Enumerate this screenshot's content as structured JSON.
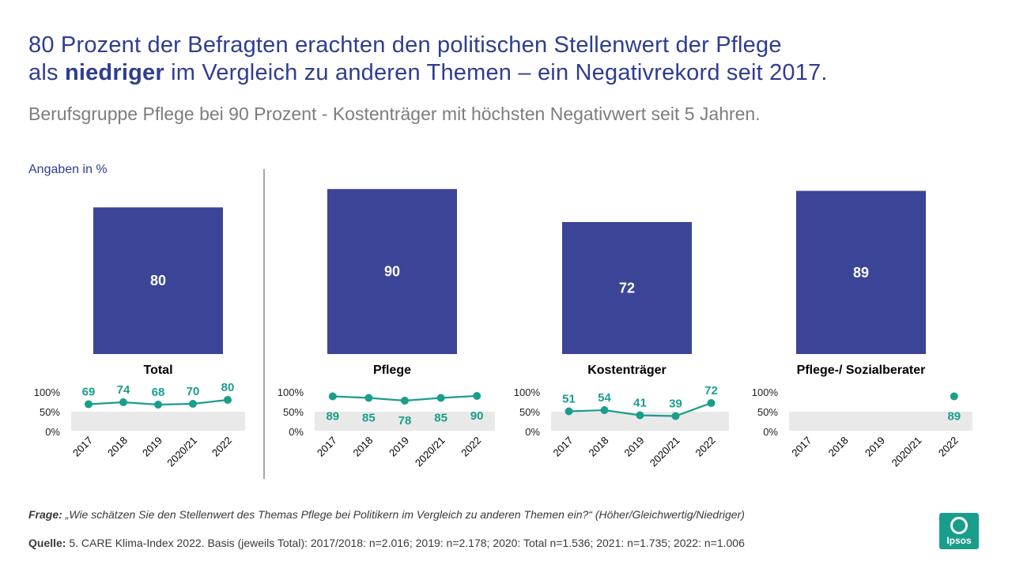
{
  "title": {
    "line1": "80 Prozent der Befragten erachten den politischen Stellenwert der Pflege",
    "line2_pre": "als ",
    "line2_bold": "niedriger",
    "line2_post": " im Vergleich zu anderen Themen – ein Negativrekord seit 2017."
  },
  "subtitle": "Berufsgruppe Pflege bei 90 Prozent - Kostenträger mit höchsten Negativwert seit 5 Jahren.",
  "unit_label": "Angaben in %",
  "chart_data": [
    {
      "type": "bar",
      "title": "Total",
      "value": 80,
      "trend": {
        "type": "line",
        "x": [
          "2017",
          "2018",
          "2019",
          "2020/21",
          "2022"
        ],
        "values": [
          69,
          74,
          68,
          70,
          80
        ],
        "labels_position": "above",
        "y_ticks": [
          "100%",
          "50%",
          "0%"
        ],
        "ylim": [
          0,
          100
        ]
      }
    },
    {
      "type": "bar",
      "title": "Pflege",
      "value": 90,
      "trend": {
        "type": "line",
        "x": [
          "2017",
          "2018",
          "2019",
          "2020/21",
          "2022"
        ],
        "values": [
          89,
          85,
          78,
          85,
          90
        ],
        "labels_position": "below",
        "y_ticks": [
          "100%",
          "50%",
          "0%"
        ],
        "ylim": [
          0,
          100
        ]
      }
    },
    {
      "type": "bar",
      "title": "Kostenträger",
      "value": 72,
      "trend": {
        "type": "line",
        "x": [
          "2017",
          "2018",
          "2019",
          "2020/21",
          "2022"
        ],
        "values": [
          51,
          54,
          41,
          39,
          72
        ],
        "labels_position": "above",
        "y_ticks": [
          "100%",
          "50%",
          "0%"
        ],
        "ylim": [
          0,
          100
        ]
      }
    },
    {
      "type": "bar",
      "title": "Pflege-/ Sozialberater",
      "value": 89,
      "trend": {
        "type": "line",
        "x": [
          "2017",
          "2018",
          "2019",
          "2020/21",
          "2022"
        ],
        "values": [
          null,
          null,
          null,
          null,
          89
        ],
        "labels_position": "below",
        "y_ticks": [
          "100%",
          "50%",
          "0%"
        ],
        "ylim": [
          0,
          100
        ]
      }
    }
  ],
  "footer": {
    "question_label": "Frage:",
    "question_text": " „Wie schätzen Sie den Stellenwert des Themas Pflege bei Politikern im Vergleich zu anderen Themen ein?“ (Höher/Gleichwertig/Niedriger)",
    "source_label": "Quelle:",
    "source_text": " 5. CARE Klima-Index 2022.  Basis (jeweils Total): 2017/2018: n=2.016; 2019: n=2.178; 2020: Total n=1.536; 2021: n=1.735; 2022: n=1.006"
  },
  "logo_text": "Ipsos",
  "colors": {
    "bar": "#3b4496",
    "line": "#1a9e8c",
    "title": "#2f3d8f",
    "band": "#e9e9e9",
    "divider": "#a6a6a6"
  }
}
